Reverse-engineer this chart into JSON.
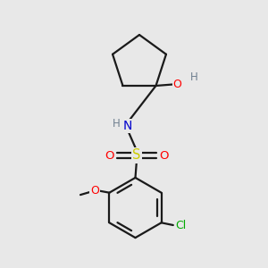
{
  "background_color": "#e8e8e8",
  "bond_color": "#1a1a1a",
  "atom_colors": {
    "O": "#ff0000",
    "N": "#0000cc",
    "S": "#cccc00",
    "Cl": "#00aa00",
    "H_gray": "#708090"
  },
  "fig_size": [
    3.0,
    3.0
  ],
  "dpi": 100
}
